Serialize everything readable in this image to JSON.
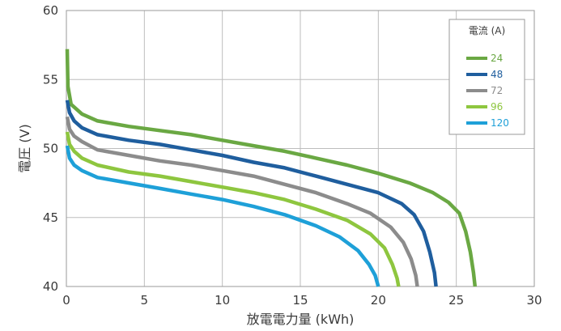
{
  "chart_data": {
    "type": "line",
    "xlabel": "放電電力量 (kWh)",
    "ylabel": "電圧 (V)",
    "xlim": [
      0,
      30
    ],
    "ylim": [
      40,
      60
    ],
    "xticks": [
      0,
      5,
      10,
      15,
      20,
      25,
      30
    ],
    "yticks": [
      40,
      45,
      50,
      55,
      60
    ],
    "grid": true,
    "legend": {
      "title": "電流 (A)",
      "placement": "top-right"
    },
    "series": [
      {
        "name": "24",
        "color": "#6aa843",
        "points": [
          [
            0.05,
            57.2
          ],
          [
            0.1,
            54.5
          ],
          [
            0.3,
            53.2
          ],
          [
            1,
            52.5
          ],
          [
            2,
            52.0
          ],
          [
            4,
            51.6
          ],
          [
            6,
            51.3
          ],
          [
            8,
            51.0
          ],
          [
            10,
            50.6
          ],
          [
            12,
            50.2
          ],
          [
            14,
            49.8
          ],
          [
            16,
            49.3
          ],
          [
            18,
            48.8
          ],
          [
            20,
            48.2
          ],
          [
            22,
            47.5
          ],
          [
            23.5,
            46.8
          ],
          [
            24.5,
            46.1
          ],
          [
            25.2,
            45.3
          ],
          [
            25.6,
            44.0
          ],
          [
            25.9,
            42.5
          ],
          [
            26.1,
            41.0
          ],
          [
            26.2,
            40.0
          ]
        ]
      },
      {
        "name": "48",
        "color": "#1f5e9e",
        "points": [
          [
            0.05,
            53.5
          ],
          [
            0.2,
            52.6
          ],
          [
            0.5,
            52.0
          ],
          [
            1,
            51.5
          ],
          [
            2,
            51.0
          ],
          [
            4,
            50.6
          ],
          [
            6,
            50.3
          ],
          [
            8,
            49.9
          ],
          [
            10,
            49.5
          ],
          [
            12,
            49.0
          ],
          [
            14,
            48.6
          ],
          [
            16,
            48.0
          ],
          [
            18,
            47.4
          ],
          [
            20,
            46.8
          ],
          [
            21.5,
            46.0
          ],
          [
            22.3,
            45.2
          ],
          [
            22.9,
            44.0
          ],
          [
            23.3,
            42.5
          ],
          [
            23.6,
            41.0
          ],
          [
            23.7,
            40.0
          ]
        ]
      },
      {
        "name": "72",
        "color": "#8c8c8c",
        "points": [
          [
            0.05,
            52.3
          ],
          [
            0.2,
            51.4
          ],
          [
            0.5,
            50.9
          ],
          [
            1,
            50.5
          ],
          [
            2,
            49.9
          ],
          [
            4,
            49.5
          ],
          [
            6,
            49.1
          ],
          [
            8,
            48.8
          ],
          [
            10,
            48.4
          ],
          [
            12,
            48.0
          ],
          [
            14,
            47.4
          ],
          [
            16,
            46.8
          ],
          [
            18,
            46.0
          ],
          [
            19.5,
            45.3
          ],
          [
            20.8,
            44.3
          ],
          [
            21.6,
            43.2
          ],
          [
            22.1,
            42.0
          ],
          [
            22.4,
            40.8
          ],
          [
            22.5,
            40.0
          ]
        ]
      },
      {
        "name": "96",
        "color": "#8ec63f",
        "points": [
          [
            0.05,
            51.2
          ],
          [
            0.2,
            50.3
          ],
          [
            0.5,
            49.8
          ],
          [
            1,
            49.3
          ],
          [
            2,
            48.8
          ],
          [
            4,
            48.3
          ],
          [
            6,
            48.0
          ],
          [
            8,
            47.6
          ],
          [
            10,
            47.2
          ],
          [
            12,
            46.8
          ],
          [
            14,
            46.3
          ],
          [
            16,
            45.6
          ],
          [
            18,
            44.8
          ],
          [
            19.5,
            43.8
          ],
          [
            20.4,
            42.8
          ],
          [
            20.9,
            41.6
          ],
          [
            21.2,
            40.6
          ],
          [
            21.3,
            40.0
          ]
        ]
      },
      {
        "name": "120",
        "color": "#1ea0d8",
        "points": [
          [
            0.05,
            50.2
          ],
          [
            0.2,
            49.3
          ],
          [
            0.5,
            48.8
          ],
          [
            1,
            48.4
          ],
          [
            2,
            47.9
          ],
          [
            4,
            47.5
          ],
          [
            6,
            47.1
          ],
          [
            8,
            46.7
          ],
          [
            10,
            46.3
          ],
          [
            12,
            45.8
          ],
          [
            14,
            45.2
          ],
          [
            16,
            44.4
          ],
          [
            17.5,
            43.6
          ],
          [
            18.7,
            42.6
          ],
          [
            19.4,
            41.6
          ],
          [
            19.8,
            40.8
          ],
          [
            20.0,
            40.0
          ]
        ]
      }
    ]
  }
}
